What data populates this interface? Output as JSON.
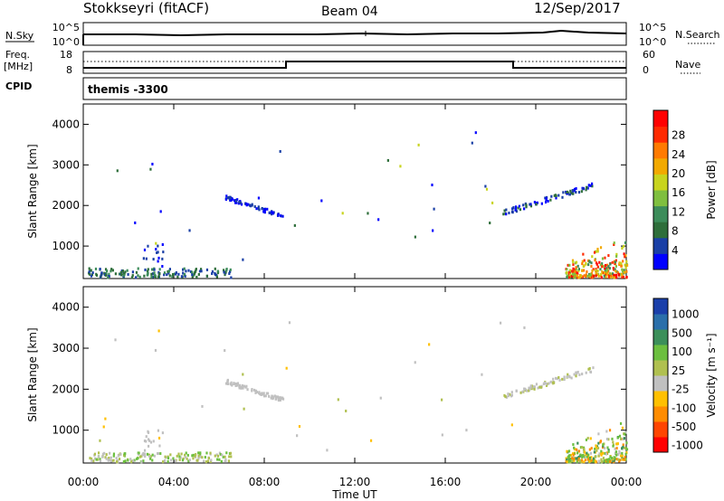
{
  "header": {
    "station": "Stokkseyri (fitACF)",
    "beam": "Beam 04",
    "date": "12/Sep/2017"
  },
  "status_panel": {
    "left_labels": [
      "N.Sky",
      "Freq.",
      "[MHz]",
      "CPID"
    ],
    "right_labels": [
      "N.Search",
      "Nave"
    ],
    "nsky_ticks": [
      "10^5",
      "10^0"
    ],
    "nsearch_ticks": [
      "10^5",
      "10^0"
    ],
    "freq_ticks": [
      "18",
      "8"
    ],
    "nave_ticks": [
      "60",
      "0"
    ],
    "cpid_text": "themis -3300"
  },
  "colors": {
    "power_scale": [
      "#0000ff",
      "#1a3fa6",
      "#2e6e3a",
      "#3c8c5a",
      "#7fbf3f",
      "#c8d41e",
      "#f2a900",
      "#ff7a00",
      "#ff2a00",
      "#ff0000"
    ],
    "velocity_scale": [
      "#ff0000",
      "#ff4500",
      "#ff8c00",
      "#ffc000",
      "#c0c0c0",
      "#b0c050",
      "#6cbf3f",
      "#3b8f5a",
      "#2a6faa",
      "#1a3faa"
    ]
  },
  "chart_data": [
    {
      "type": "heatmap",
      "name": "power",
      "ylabel": "Slant Range [km]",
      "ylim": [
        200,
        4500
      ],
      "yticks": [
        "1000",
        "2000",
        "3000",
        "4000"
      ],
      "colorbar_label": "Power [dB]",
      "colorbar_ticks": [
        "4",
        "8",
        "12",
        "16",
        "20",
        "24",
        "28"
      ],
      "grid": false
    },
    {
      "type": "heatmap",
      "name": "velocity",
      "ylabel": "Slant Range [km]",
      "ylim": [
        200,
        4500
      ],
      "yticks": [
        "1000",
        "2000",
        "3000",
        "4000"
      ],
      "colorbar_label": "Velocity [m s⁻¹]",
      "colorbar_ticks": [
        "1000",
        "500",
        "100",
        "25",
        "-25",
        "-100",
        "-500",
        "-1000"
      ],
      "grid": false
    }
  ],
  "xaxis": {
    "label": "Time UT",
    "ticks": [
      "00:00",
      "04:00",
      "08:00",
      "12:00",
      "16:00",
      "20:00",
      "00:00"
    ]
  }
}
